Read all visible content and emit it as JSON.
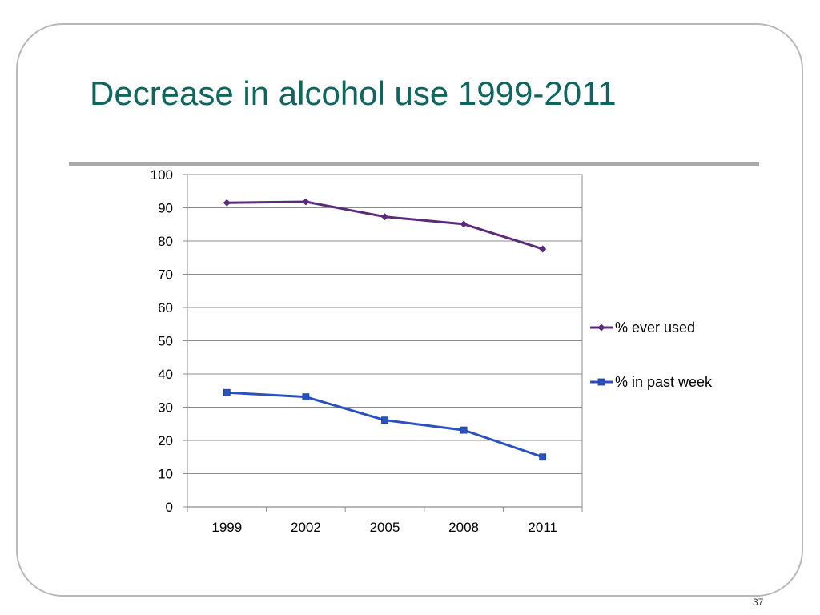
{
  "slide": {
    "title": "Decrease in alcohol use 1999-2011",
    "page_number": "37"
  },
  "chart_data": {
    "type": "line",
    "categories": [
      "1999",
      "2002",
      "2005",
      "2008",
      "2011"
    ],
    "ylim": [
      0,
      100
    ],
    "yticks": [
      "0",
      "10",
      "20",
      "30",
      "40",
      "50",
      "60",
      "70",
      "80",
      "90",
      "100"
    ],
    "grid": true,
    "legend_position": "right",
    "series": [
      {
        "name": "% ever used",
        "values": [
          91.5,
          91.8,
          87.3,
          85.1,
          77.6
        ],
        "color": "#5b2a7a",
        "marker": "diamond"
      },
      {
        "name": "% in past week",
        "values": [
          34.4,
          33.1,
          26.1,
          23.1,
          15.0
        ],
        "color": "#2a52be",
        "marker": "square"
      }
    ]
  }
}
